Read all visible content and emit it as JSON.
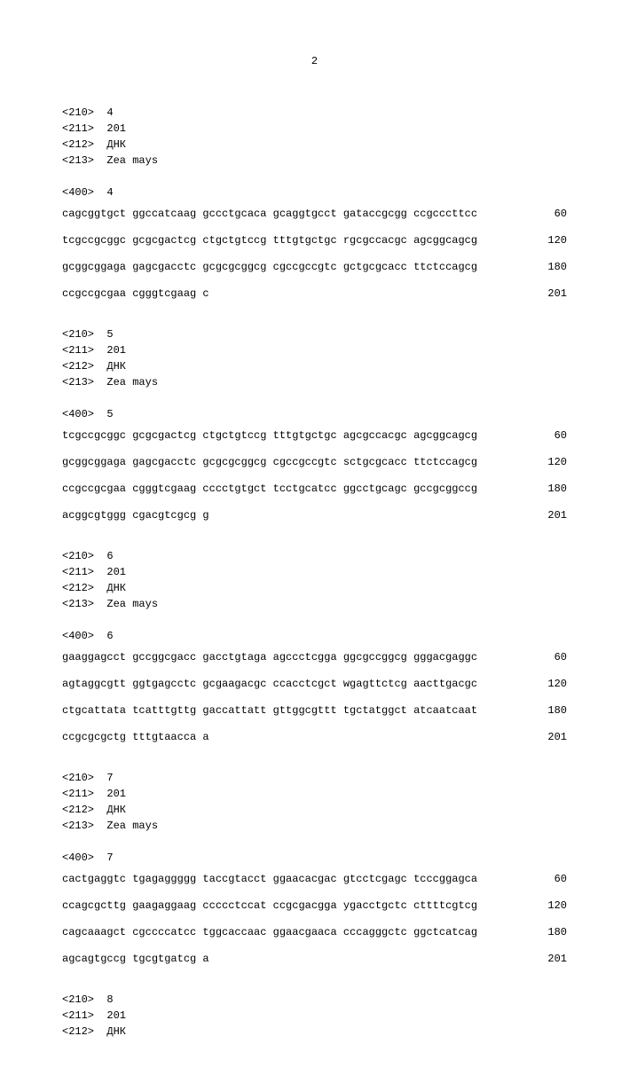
{
  "page_number": "2",
  "font": {
    "family": "Courier New",
    "size_pt": 12,
    "color": "#000000"
  },
  "background_color": "#ffffff",
  "entries": [
    {
      "meta": [
        "<210>  4",
        "<211>  201",
        "<212>  ДНК",
        "<213>  Zea mays"
      ],
      "seq_header": "<400>  4",
      "rows": [
        {
          "seq": "cagcggtgct ggccatcaag gccctgcaca gcaggtgcct gataccgcgg ccgcccttcc",
          "pos": "60"
        },
        {
          "seq": "tcgccgcggc gcgcgactcg ctgctgtccg tttgtgctgc rgcgccacgc agcggcagcg",
          "pos": "120"
        },
        {
          "seq": "gcggcggaga gagcgacctc gcgcgcggcg cgccgccgtc gctgcgcacc ttctccagcg",
          "pos": "180"
        },
        {
          "seq": "ccgccgcgaa cgggtcgaag c",
          "pos": "201"
        }
      ]
    },
    {
      "meta": [
        "<210>  5",
        "<211>  201",
        "<212>  ДНК",
        "<213>  Zea mays"
      ],
      "seq_header": "<400>  5",
      "rows": [
        {
          "seq": "tcgccgcggc gcgcgactcg ctgctgtccg tttgtgctgc agcgccacgc agcggcagcg",
          "pos": "60"
        },
        {
          "seq": "gcggcggaga gagcgacctc gcgcgcggcg cgccgccgtc sctgcgcacc ttctccagcg",
          "pos": "120"
        },
        {
          "seq": "ccgccgcgaa cgggtcgaag cccctgtgct tcctgcatcc ggcctgcagc gccgcggccg",
          "pos": "180"
        },
        {
          "seq": "acggcgtggg cgacgtcgcg g",
          "pos": "201"
        }
      ]
    },
    {
      "meta": [
        "<210>  6",
        "<211>  201",
        "<212>  ДНК",
        "<213>  Zea mays"
      ],
      "seq_header": "<400>  6",
      "rows": [
        {
          "seq": "gaaggagcct gccggcgacc gacctgtaga agccctcgga ggcgccggcg gggacgaggc",
          "pos": "60"
        },
        {
          "seq": "agtaggcgtt ggtgagcctc gcgaagacgc ccacctcgct wgagttctcg aacttgacgc",
          "pos": "120"
        },
        {
          "seq": "ctgcattata tcatttgttg gaccattatt gttggcgttt tgctatggct atcaatcaat",
          "pos": "180"
        },
        {
          "seq": "ccgcgcgctg tttgtaacca a",
          "pos": "201"
        }
      ]
    },
    {
      "meta": [
        "<210>  7",
        "<211>  201",
        "<212>  ДНК",
        "<213>  Zea mays"
      ],
      "seq_header": "<400>  7",
      "rows": [
        {
          "seq": "cactgaggtc tgagaggggg taccgtacct ggaacacgac gtcctcgagc tcccggagca",
          "pos": "60"
        },
        {
          "seq": "ccagcgcttg gaagaggaag ccccctccat ccgcgacgga ygacctgctc cttttcgtcg",
          "pos": "120"
        },
        {
          "seq": "cagcaaagct cgccccatcc tggcaccaac ggaacgaaca cccagggctc ggctcatcag",
          "pos": "180"
        },
        {
          "seq": "agcagtgccg tgcgtgatcg a",
          "pos": "201"
        }
      ]
    },
    {
      "meta": [
        "<210>  8",
        "<211>  201",
        "<212>  ДНК"
      ],
      "seq_header": null,
      "rows": []
    }
  ]
}
